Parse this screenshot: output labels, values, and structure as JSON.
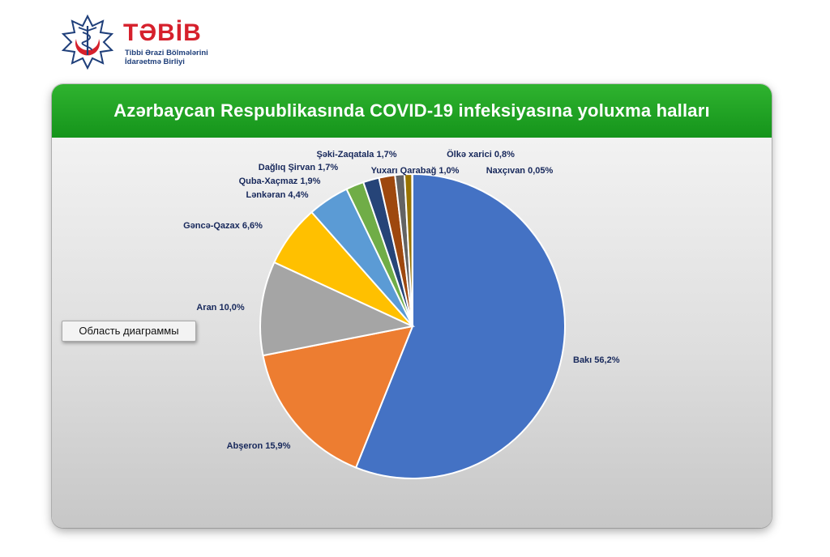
{
  "logo": {
    "name": "TƏBİB",
    "subtitle_line1": "Tibbi Ərazi Bölmələrini",
    "subtitle_line2": "İdarəetmə Birliyi",
    "colors": {
      "red": "#d6202c",
      "blue": "#1f3f7a"
    },
    "icon": "caduceus-star-emblem-icon"
  },
  "tooltip": {
    "text": "Область диаграммы"
  },
  "chart_data": {
    "type": "pie",
    "title": "Azərbaycan Respublikasında COVID-19 infeksiyasına yoluxma halları",
    "slices": [
      {
        "name": "Bakı",
        "value": 56.2,
        "label": "Bakı  56,2%",
        "color": "#4472c4"
      },
      {
        "name": "Abşeron",
        "value": 15.9,
        "label": "Abşeron 15,9%",
        "color": "#ed7d31"
      },
      {
        "name": "Aran",
        "value": 10.0,
        "label": "Aran 10,0%",
        "color": "#a5a5a5"
      },
      {
        "name": "Gəncə-Qazax",
        "value": 6.6,
        "label": "Gəncə-Qazax 6,6%",
        "color": "#ffc000"
      },
      {
        "name": "Lənkəran",
        "value": 4.4,
        "label": "Lənkəran 4,4%",
        "color": "#5b9bd5"
      },
      {
        "name": "Quba-Xaçmaz",
        "value": 1.9,
        "label": "Quba-Xaçmaz 1,9%",
        "color": "#70ad47"
      },
      {
        "name": "Dağlıq Şirvan",
        "value": 1.7,
        "label": "Dağlıq Şirvan 1,7%",
        "color": "#264478"
      },
      {
        "name": "Şəki-Zaqatala",
        "value": 1.7,
        "label": "Şəki-Zaqatala 1,7%",
        "color": "#9e480e"
      },
      {
        "name": "Yuxarı Qarabağ",
        "value": 1.0,
        "label": "Yuxarı Qarabağ 1,0%",
        "color": "#636363"
      },
      {
        "name": "Ölkə xarici",
        "value": 0.8,
        "label": "Ölkə xarici 0,8%",
        "color": "#997300"
      },
      {
        "name": "Naxçıvan",
        "value": 0.05,
        "label": "Naxçıvan 0,05%",
        "color": "#255e91"
      }
    ],
    "header_color": "#1ea423"
  }
}
